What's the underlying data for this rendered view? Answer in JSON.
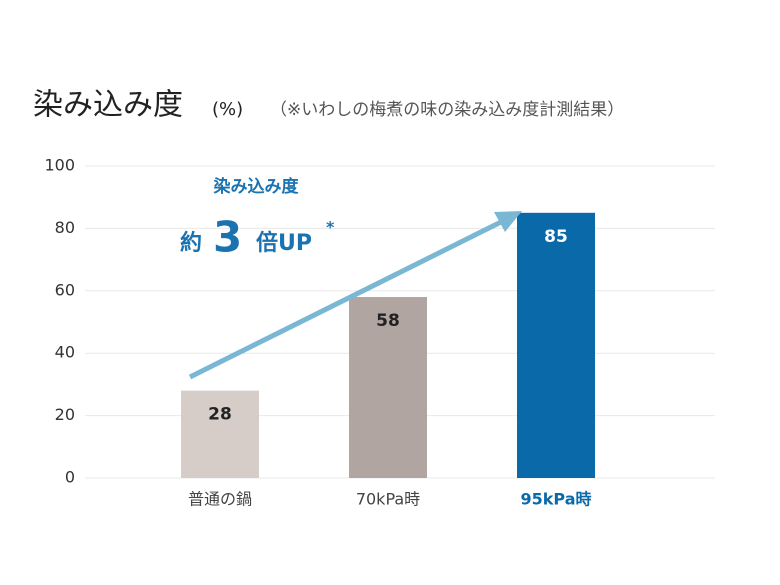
{
  "chart_data": {
    "type": "bar",
    "title": "染み込み度",
    "unit": "(%)",
    "subtitle": "（※いわしの梅煮の味の染み込み度計測結果）",
    "annotation": {
      "heading": "染み込み度",
      "prefix": "約",
      "number": "3",
      "suffix": "倍UP",
      "mark": "*"
    },
    "categories": [
      "普通の鍋",
      "70kPa時",
      "95kPa時"
    ],
    "values": [
      28,
      58,
      85
    ],
    "colors": [
      "#d6cdc9",
      "#b0a5a1",
      "#0a69a8"
    ],
    "value_label_colors": [
      "#222222",
      "#222222",
      "#ffffff"
    ],
    "label_colors": [
      "#444444",
      "#444444",
      "#0a69a8"
    ],
    "label_bold": [
      false,
      false,
      true
    ],
    "ylim": [
      0,
      100
    ],
    "yticks": [
      0,
      20,
      40,
      60,
      80,
      100
    ],
    "grid": true
  }
}
